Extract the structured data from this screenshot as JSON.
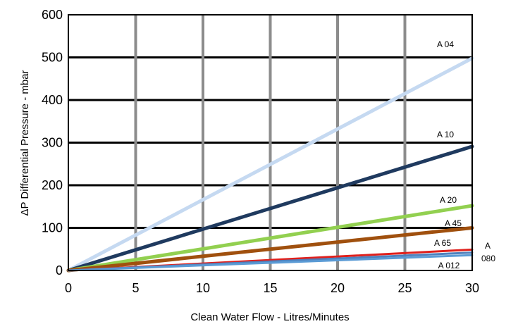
{
  "chart_data": {
    "type": "line",
    "xlabel": "Clean Water Flow - Litres/Minutes",
    "ylabel": "ΔP Differential Pressure - mbar",
    "xlim": [
      0,
      30
    ],
    "ylim": [
      0,
      600
    ],
    "x_ticks": [
      "0",
      "5",
      "10",
      "15",
      "20",
      "25",
      "30"
    ],
    "y_ticks": [
      "0",
      "100",
      "200",
      "300",
      "400",
      "500",
      "600"
    ],
    "grid": {
      "vertical": true,
      "horizontal": true
    },
    "legend": "inline labels near line ends",
    "series": [
      {
        "name": "A 04",
        "color": "#c5d9f1",
        "x": [
          0,
          30
        ],
        "y": [
          0,
          498
        ]
      },
      {
        "name": "A 10",
        "color": "#1f3a5f",
        "x": [
          0,
          30
        ],
        "y": [
          0,
          291
        ]
      },
      {
        "name": "A 20",
        "color": "#92d050",
        "x": [
          0,
          30
        ],
        "y": [
          0,
          152
        ]
      },
      {
        "name": "A 45",
        "color": "#a0500e",
        "x": [
          0,
          30
        ],
        "y": [
          0,
          100
        ]
      },
      {
        "name": "A 65",
        "color": "#e0201c",
        "x": [
          0,
          30
        ],
        "y": [
          0,
          49
        ]
      },
      {
        "name": "A 080",
        "color": "#4f81bd",
        "x": [
          0,
          30
        ],
        "y": [
          0,
          42
        ]
      },
      {
        "name": "A 012",
        "color": "#5b9bd5",
        "x": [
          0,
          30
        ],
        "y": [
          0,
          36
        ]
      }
    ]
  }
}
